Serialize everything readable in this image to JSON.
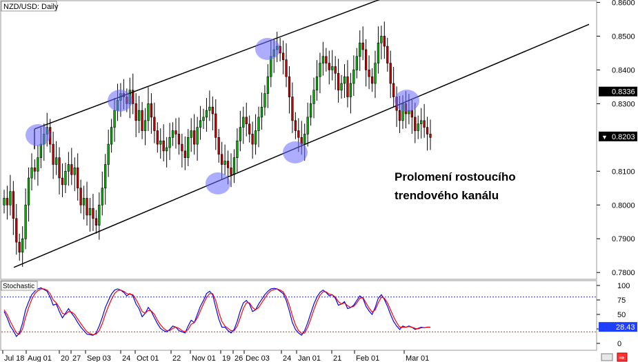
{
  "chart_data": [
    {
      "type": "candlestick",
      "title": "NZD/USD: Daily",
      "annotation_lines": [
        "Prolomení rostoucího",
        "trendového kanálu"
      ],
      "ylim": [
        0.778,
        0.8605
      ],
      "y_ticks": [
        "0.8600",
        "0.8500",
        "0.8400",
        "0.8300",
        "0.8100",
        "0.8000",
        "0.7900",
        "0.7800"
      ],
      "current_price": "0.8203",
      "marked_level": "0.8336",
      "x_tick_labels": [
        "Jul 18",
        "Aug 01",
        "20",
        "27",
        "Sep 03",
        "24",
        "Oct 01",
        "22",
        "Nov 01",
        "19",
        "26",
        "Dec 03",
        "24",
        "Jan 01",
        "21",
        "Feb 01",
        "Mar 01"
      ],
      "channel": {
        "upper": {
          "start": [
            "Aug 01",
            0.8225
          ],
          "end": [
            "Feb 01",
            0.8625
          ]
        },
        "lower": {
          "start": [
            "Jul 18",
            0.7815
          ],
          "end": [
            "Mar 01",
            0.8335
          ]
        }
      },
      "closes": [
        0.802,
        0.8,
        0.804,
        0.796,
        0.789,
        0.786,
        0.79,
        0.8,
        0.808,
        0.811,
        0.81,
        0.814,
        0.818,
        0.821,
        0.823,
        0.818,
        0.812,
        0.814,
        0.808,
        0.806,
        0.81,
        0.812,
        0.809,
        0.811,
        0.805,
        0.8,
        0.802,
        0.797,
        0.799,
        0.796,
        0.794,
        0.8,
        0.805,
        0.812,
        0.818,
        0.823,
        0.828,
        0.831,
        0.833,
        0.832,
        0.83,
        0.834,
        0.83,
        0.825,
        0.828,
        0.822,
        0.825,
        0.83,
        0.826,
        0.822,
        0.818,
        0.819,
        0.816,
        0.817,
        0.82,
        0.822,
        0.821,
        0.818,
        0.816,
        0.814,
        0.82,
        0.822,
        0.818,
        0.823,
        0.825,
        0.826,
        0.828,
        0.829,
        0.827,
        0.82,
        0.815,
        0.812,
        0.813,
        0.811,
        0.809,
        0.814,
        0.819,
        0.823,
        0.826,
        0.824,
        0.821,
        0.818,
        0.822,
        0.826,
        0.829,
        0.833,
        0.838,
        0.844,
        0.846,
        0.847,
        0.845,
        0.843,
        0.838,
        0.832,
        0.825,
        0.822,
        0.82,
        0.818,
        0.821,
        0.826,
        0.83,
        0.834,
        0.838,
        0.842,
        0.844,
        0.842,
        0.84,
        0.841,
        0.839,
        0.834,
        0.836,
        0.838,
        0.832,
        0.836,
        0.84,
        0.844,
        0.848,
        0.846,
        0.84,
        0.838,
        0.836,
        0.842,
        0.848,
        0.85,
        0.847,
        0.842,
        0.836,
        0.832,
        0.828,
        0.825,
        0.83,
        0.827,
        0.828,
        0.826,
        0.822,
        0.824,
        0.825,
        0.823,
        0.821,
        0.82
      ],
      "ohlc_note": "highs and lows are drawn at fixed offsets from closes"
    },
    {
      "type": "line",
      "title": "Stochastic",
      "ylim": [
        0,
        100
      ],
      "y_ticks": [
        "100",
        "75",
        "50",
        "25",
        "0"
      ],
      "levels": [
        80,
        20
      ],
      "current_value": "28.43",
      "series": [
        {
          "color": "#0000ff",
          "values": [
            55,
            44,
            30,
            22,
            12,
            18,
            35,
            58,
            72,
            84,
            90,
            94,
            96,
            93,
            90,
            80,
            66,
            68,
            55,
            44,
            52,
            60,
            52,
            45,
            36,
            28,
            22,
            16,
            15,
            14,
            18,
            30,
            45,
            62,
            74,
            85,
            92,
            94,
            92,
            88,
            82,
            86,
            82,
            68,
            60,
            46,
            52,
            62,
            55,
            44,
            34,
            26,
            22,
            20,
            24,
            30,
            28,
            22,
            20,
            18,
            30,
            40,
            36,
            50,
            64,
            74,
            86,
            90,
            84,
            62,
            42,
            28,
            28,
            22,
            18,
            24,
            38,
            56,
            70,
            74,
            68,
            55,
            58,
            68,
            76,
            84,
            90,
            94,
            95,
            94,
            90,
            86,
            74,
            56,
            36,
            24,
            18,
            14,
            22,
            36,
            52,
            68,
            80,
            88,
            92,
            88,
            82,
            84,
            78,
            66,
            68,
            72,
            60,
            62,
            66,
            74,
            82,
            78,
            64,
            56,
            50,
            62,
            78,
            84,
            76,
            64,
            50,
            38,
            30,
            24,
            30,
            28,
            30,
            28,
            24,
            26,
            28,
            27,
            28,
            28
          ]
        },
        {
          "color": "#ff0000",
          "values": [
            58,
            50,
            38,
            28,
            18,
            16,
            25,
            45,
            62,
            76,
            86,
            91,
            94,
            94,
            92,
            86,
            75,
            70,
            62,
            52,
            50,
            55,
            54,
            50,
            42,
            34,
            27,
            20,
            17,
            15,
            16,
            22,
            34,
            50,
            64,
            76,
            86,
            91,
            92,
            90,
            86,
            85,
            84,
            76,
            66,
            55,
            52,
            57,
            56,
            50,
            40,
            32,
            26,
            22,
            22,
            26,
            28,
            26,
            22,
            20,
            24,
            33,
            36,
            44,
            56,
            68,
            79,
            86,
            86,
            74,
            54,
            38,
            30,
            26,
            22,
            22,
            30,
            44,
            60,
            70,
            70,
            62,
            58,
            62,
            70,
            78,
            86,
            91,
            93,
            94,
            92,
            89,
            80,
            66,
            48,
            32,
            22,
            17,
            18,
            28,
            42,
            58,
            72,
            83,
            89,
            89,
            85,
            84,
            80,
            72,
            68,
            70,
            65,
            62,
            64,
            70,
            78,
            79,
            70,
            61,
            54,
            58,
            70,
            80,
            78,
            70,
            58,
            46,
            36,
            28,
            28,
            28,
            29,
            28,
            26,
            25,
            27,
            27,
            28,
            28
          ]
        }
      ]
    }
  ]
}
